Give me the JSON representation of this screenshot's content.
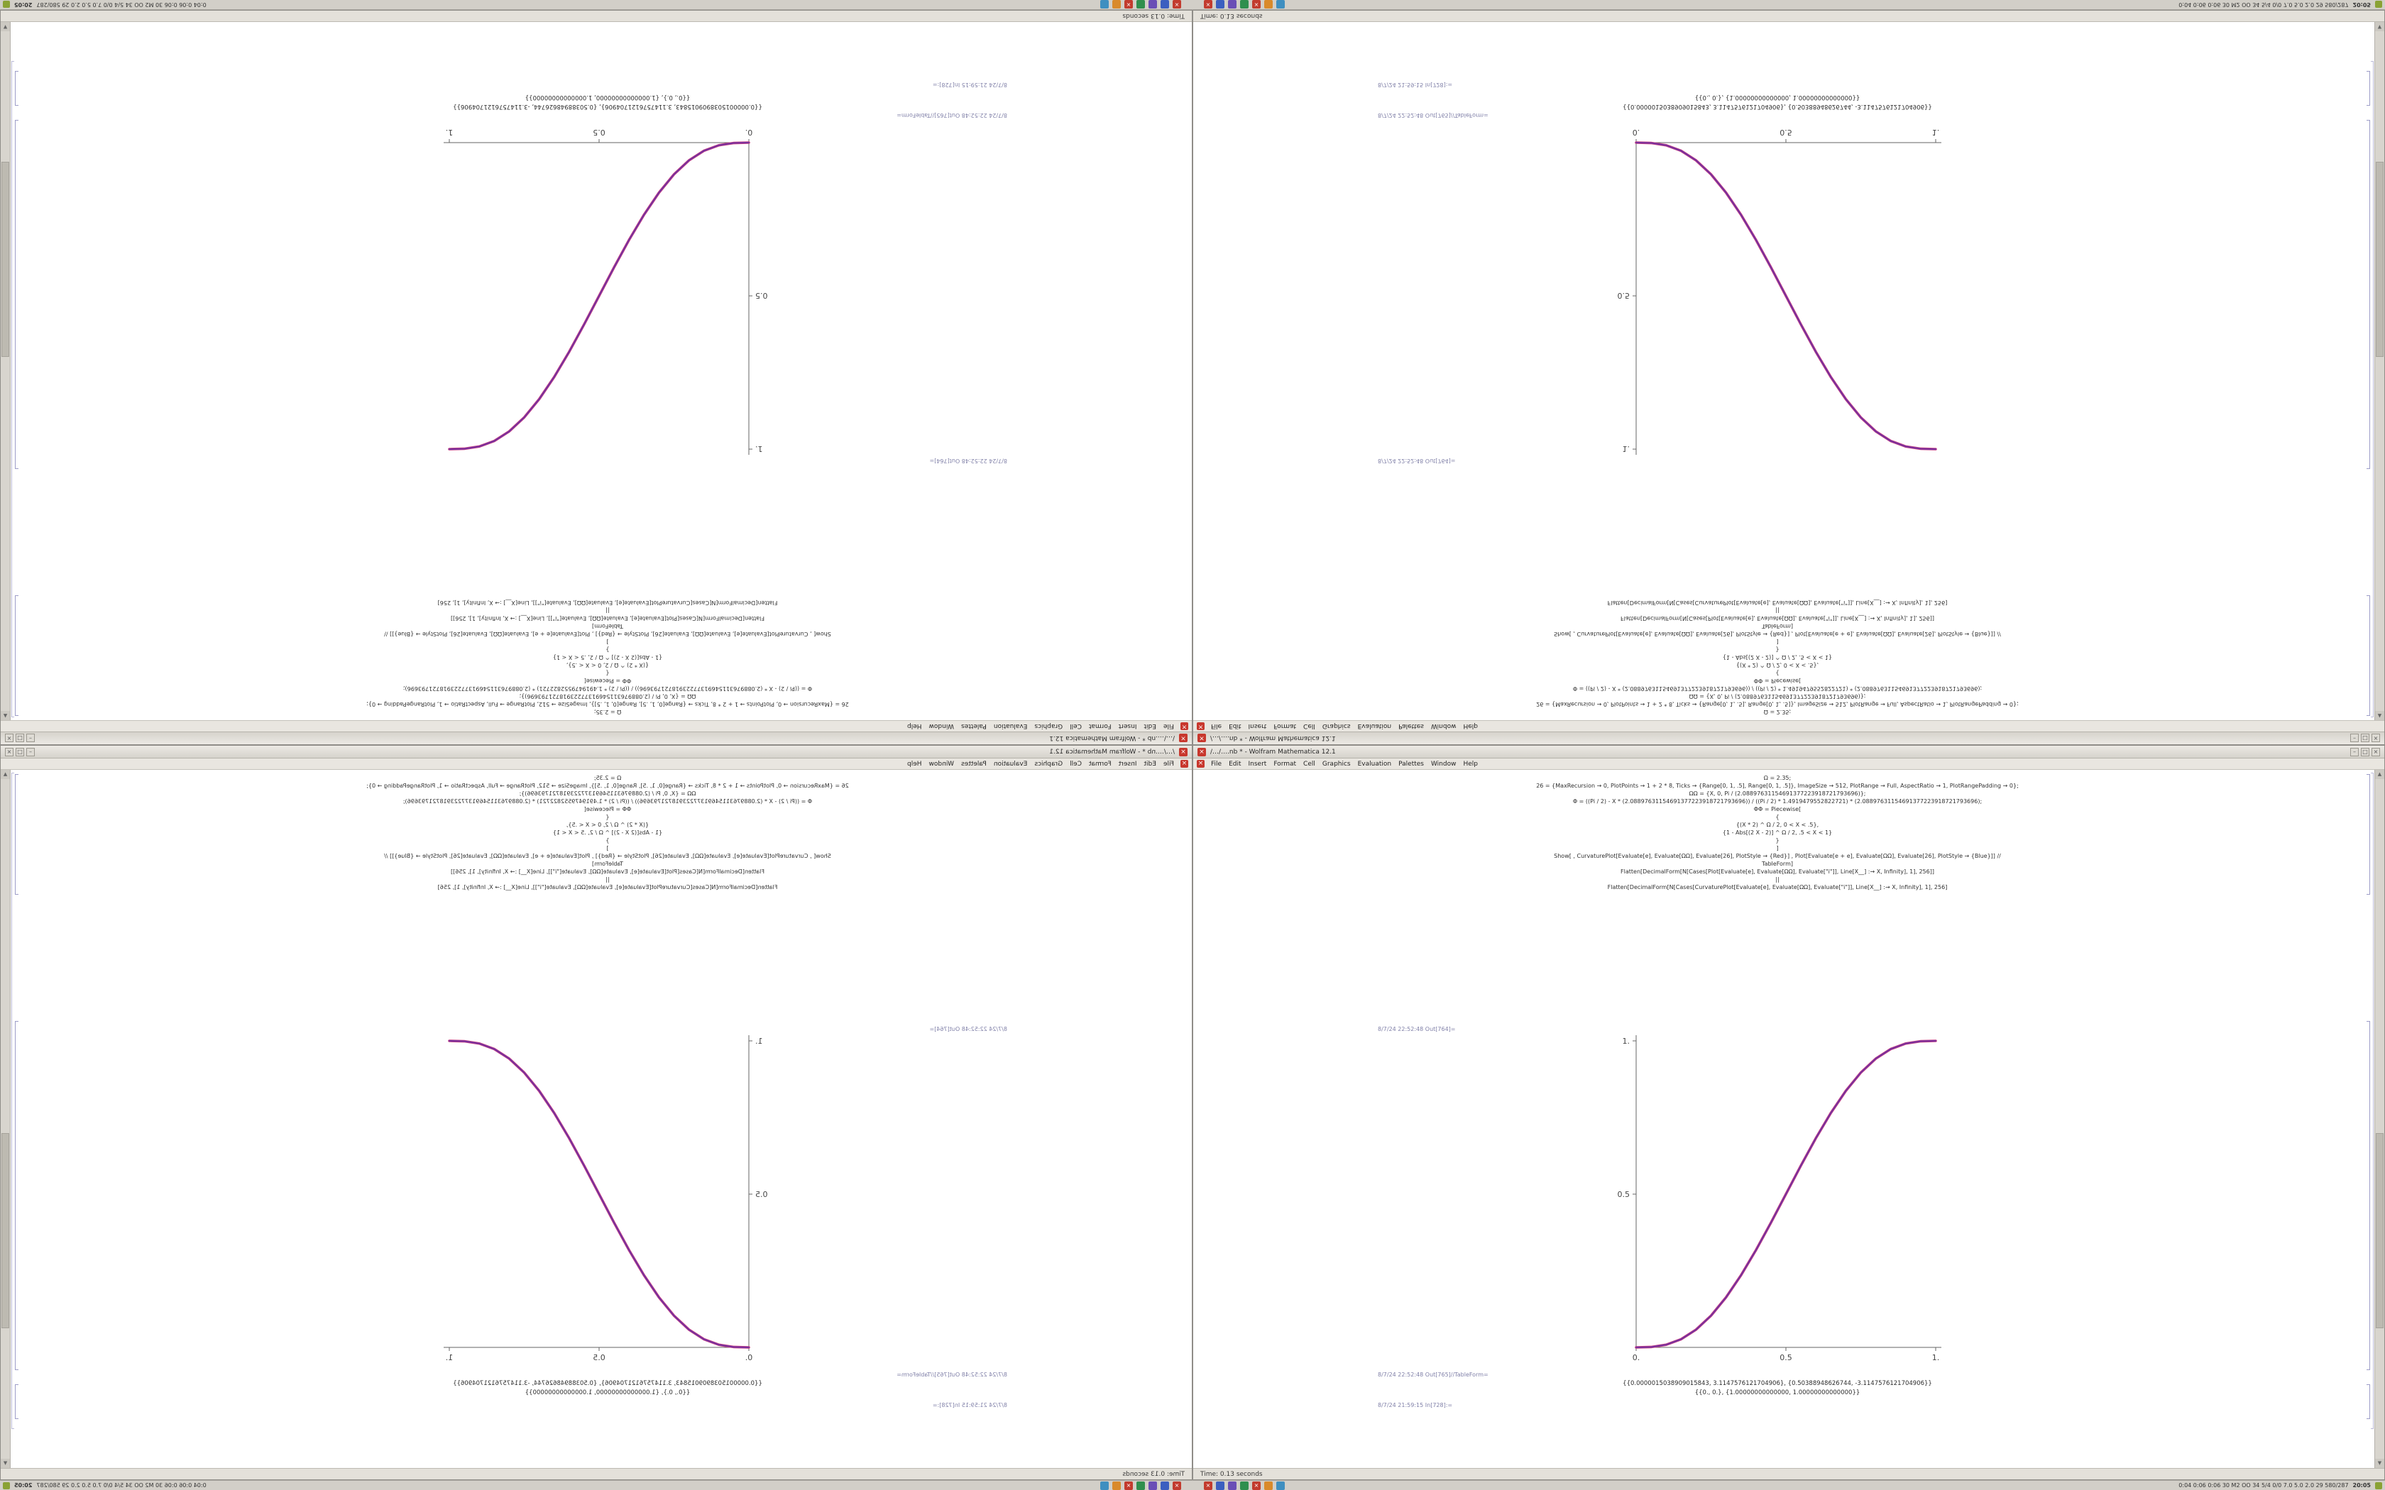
{
  "desktop": {
    "background": "#9a9a9a",
    "note": "one 1680x1050 screen shown 4 times: normal, flip-horizontal, rotate-180, flip-vertical"
  },
  "windows": [
    {
      "slot": "top-left",
      "transform": "rotate-180"
    },
    {
      "slot": "top-right",
      "transform": "flip-vertical"
    },
    {
      "slot": "bottom-left",
      "transform": "flip-horizontal"
    },
    {
      "slot": "bottom-right",
      "transform": "none"
    }
  ],
  "chrome": {
    "menus": [
      "File",
      "Edit",
      "Insert",
      "Format",
      "Cell",
      "Graphics",
      "Evaluation",
      "Palettes",
      "Window",
      "Help"
    ],
    "window_buttons": [
      "–",
      "□",
      "×"
    ],
    "close_glyph": "×",
    "scroll_up_glyph": "▲",
    "scroll_down_glyph": "▼"
  },
  "notebook": {
    "window_title": "/…/….nb * - Wolfram Mathematica 12.1",
    "status_text": "Time: 0.13 seconds",
    "code_lines": [
      "Ω = 2.35;",
      "26 = {MaxRecursion → 0, PlotPoints → 1 + 2 * 8, Ticks → {Range[0, 1, .5], Range[0, 1, .5]}, ImageSize → 512, PlotRange → Full, AspectRatio → 1, PlotRangePadding → 0};",
      "ΩΩ = {X, 0, Pi / (2.08897631154691377223918721793696)};",
      "Φ = ((Pi / 2) - X * (2.08897631154691377223918721793696)) / ((Pi / 2) * 1.4919479552822721) * (2.08897631154691377223918721793696);",
      "ΦΦ = Piecewise[",
      "{",
      "{(X * 2) ^ Ω / 2, 0 < X < .5},",
      "{1 - Abs[(2 X - 2)] ^ Ω / 2, .5 < X < 1}",
      "}",
      "]",
      "Show[ , CurvaturePlot[Evaluate[e], Evaluate[ΩΩ], Evaluate[26], PlotStyle → {Red}] , Plot[Evaluate[e + e], Evaluate[ΩΩ], Evaluate[26], PlotStyle → {Blue}]] //",
      "TableForm]",
      "Flatten[DecimalForm[N[Cases[Plot[Evaluate[e], Evaluate[ΩΩ], Evaluate[\"i\"]], Line[X__] :→ X, Infinity], 1], 256]]",
      "||",
      "Flatten[DecimalForm[N[Cases[CurvaturePlot[Evaluate[e], Evaluate[ΩΩ], Evaluate[\"i\"]], Line[X__] :→ X, Infinity], 1], 256]"
    ],
    "out_label_plot": "8/7/24 22:52:48 Out[764]=",
    "out_label_table": "8/7/24 22:52:48 Out[765]//TableForm=",
    "table_rows": [
      "{{0.0000015038909015843, 3.1147576121704906}, {0.50388948626744, -3.1147576121704906}}",
      "{{0., 0.}, {1.00000000000000, 1.00000000000000}}"
    ],
    "in_label": "8/7/24 21:59:15 In[728]:=",
    "chart": {
      "type": "line",
      "title": "",
      "xlabel": "",
      "ylabel": "",
      "xlim": [
        0,
        1
      ],
      "ylim": [
        0,
        1
      ],
      "image_size": 512,
      "x": [
        0,
        0.05,
        0.1,
        0.15,
        0.2,
        0.25,
        0.3,
        0.35,
        0.4,
        0.45,
        0.5,
        0.55,
        0.6,
        0.65,
        0.7,
        0.75,
        0.8,
        0.85,
        0.9,
        0.95,
        1
      ],
      "y": [
        0,
        0.0012,
        0.0086,
        0.0266,
        0.0579,
        0.1035,
        0.1631,
        0.2352,
        0.3174,
        0.4069,
        0.5,
        0.5931,
        0.6826,
        0.7648,
        0.8369,
        0.8965,
        0.9421,
        0.9734,
        0.9914,
        0.9988,
        1
      ],
      "x_ticks": [
        {
          "v": 0,
          "label": "0."
        },
        {
          "v": 0.5,
          "label": "0.5"
        },
        {
          "v": 1,
          "label": "1."
        }
      ],
      "y_ticks": [
        {
          "v": 0.5,
          "label": "0.5"
        },
        {
          "v": 1,
          "label": "1."
        }
      ],
      "curve_colors": [
        "#c43f85",
        "#6e2fa0"
      ]
    }
  },
  "taskbar": {
    "tray": [
      {
        "name": "tray-close-icon",
        "color": "#c23b2e",
        "glyph": "×"
      },
      {
        "name": "tray-browser-icon",
        "color": "#3b5fc0",
        "glyph": ""
      },
      {
        "name": "tray-app-purple-icon",
        "color": "#6a4fb6",
        "glyph": ""
      },
      {
        "name": "tray-app-green-icon",
        "color": "#2f8f4e",
        "glyph": ""
      },
      {
        "name": "tray-abort-icon",
        "color": "#c23b2e",
        "glyph": "×"
      },
      {
        "name": "tray-app-orange-icon",
        "color": "#d98a2b",
        "glyph": ""
      },
      {
        "name": "tray-app-blue-icon",
        "color": "#3f8fc0",
        "glyph": ""
      }
    ],
    "stats_text": "0:04 0:06 0:06 30 M2 OO 34 5/4 0/0 7.0 5.0 2.0 29 580/287",
    "clock_text": "20:05"
  }
}
